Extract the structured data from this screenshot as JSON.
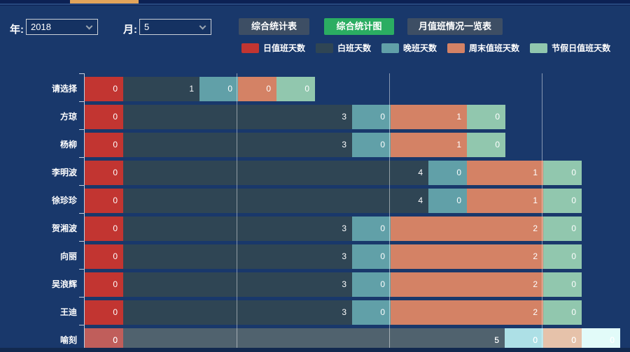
{
  "toolbar": {
    "year_label": "年:",
    "year_value": "2018",
    "month_label": "月:",
    "month_value": "5",
    "buttons": [
      {
        "label": "综合统计表",
        "active": false
      },
      {
        "label": "综合统计图",
        "active": true
      },
      {
        "label": "月值班情况一览表",
        "active": false
      }
    ],
    "active_button_color": "#2bad62",
    "inactive_button_color": "#3d4e64"
  },
  "chart_data": {
    "type": "bar",
    "orientation": "horizontal",
    "stacked": true,
    "grid": true,
    "legend_position": "top",
    "categories": [
      "请选择",
      "方琼",
      "杨柳",
      "李明波",
      "徐珍珍",
      "贺湘波",
      "向丽",
      "吴浪辉",
      "王迪",
      "喻刻"
    ],
    "series": [
      {
        "name": "日值班天数",
        "color": "#c23531",
        "values": [
          0,
          0,
          0,
          0,
          0,
          0,
          0,
          0,
          0,
          0
        ]
      },
      {
        "name": "白班天数",
        "color": "#2f4554",
        "values": [
          1,
          3,
          3,
          4,
          4,
          3,
          3,
          3,
          3,
          5
        ]
      },
      {
        "name": "晚班天数",
        "color": "#61a0a8",
        "values": [
          0,
          0,
          0,
          0,
          0,
          0,
          0,
          0,
          0,
          0
        ]
      },
      {
        "name": "周末值班天数",
        "color": "#d48265",
        "values": [
          0,
          1,
          1,
          1,
          1,
          2,
          2,
          2,
          2,
          0
        ]
      },
      {
        "name": "节假日值班天数",
        "color": "#91c7ae",
        "values": [
          0,
          0,
          0,
          0,
          0,
          0,
          0,
          0,
          0,
          0
        ]
      }
    ],
    "x_gridline_values": [
      2,
      4,
      6
    ],
    "xlim": [
      0,
      7
    ],
    "highlighted_category": "喻刻"
  }
}
